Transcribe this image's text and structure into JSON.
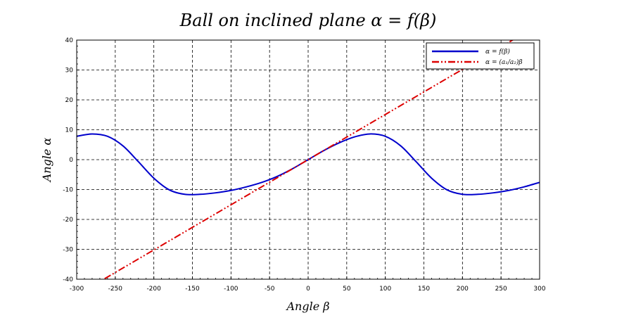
{
  "chart_data": {
    "type": "line",
    "title": "Ball on inclined plane α = f(β)",
    "xlabel": "Angle β",
    "ylabel": "Angle α",
    "xlim": [
      -300,
      300
    ],
    "ylim": [
      -40,
      40
    ],
    "x_ticks": [
      -300,
      -250,
      -200,
      -150,
      -100,
      -50,
      0,
      50,
      100,
      150,
      200,
      250,
      300
    ],
    "y_ticks": [
      -40,
      -30,
      -20,
      -10,
      0,
      10,
      20,
      30,
      40
    ],
    "x_tick_labels": [
      "-300",
      "-250",
      "-200",
      "-150",
      "-100",
      "-50",
      "0",
      "50",
      "100",
      "150",
      "200",
      "250",
      "300"
    ],
    "y_tick_labels": [
      "-40",
      "-30",
      "-20",
      "-10",
      "0",
      "10",
      "20",
      "30",
      "40"
    ],
    "grid": true,
    "legend_position": "top-right",
    "series": [
      {
        "name": "α = f(β)",
        "color": "#0000cc",
        "style": "solid",
        "x": [
          -300,
          -280,
          -260,
          -240,
          -220,
          -200,
          -180,
          -160,
          -140,
          -120,
          -100,
          -80,
          -60,
          -40,
          -20,
          0,
          20,
          40,
          60,
          80,
          100,
          120,
          140,
          160,
          180,
          200,
          220,
          240,
          260,
          280,
          300
        ],
        "y": [
          7.8,
          8.6,
          7.8,
          4.6,
          -0.7,
          -6.2,
          -10.1,
          -11.6,
          -11.6,
          -11.1,
          -10.3,
          -9.1,
          -7.6,
          -5.6,
          -3.0,
          0.0,
          3.0,
          5.6,
          7.6,
          8.6,
          7.8,
          4.6,
          -0.7,
          -6.2,
          -10.1,
          -11.6,
          -11.6,
          -11.1,
          -10.3,
          -9.1,
          -7.6
        ]
      },
      {
        "name": "α = (a₁/a₂)β",
        "color": "#dd0000",
        "style": "dash-dot",
        "x": [
          -300,
          300
        ],
        "y": [
          -45.3,
          45.3
        ]
      }
    ]
  }
}
